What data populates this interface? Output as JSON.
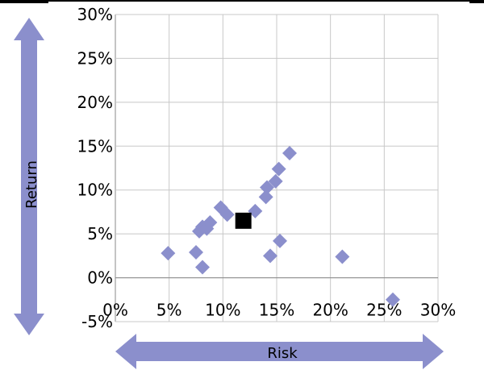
{
  "chart_data": {
    "type": "scatter",
    "xlabel": "Risk",
    "ylabel": "Return",
    "xlim": [
      0,
      0.3
    ],
    "ylim": [
      -0.05,
      0.3
    ],
    "x_ticks": [
      "0%",
      "5%",
      "10%",
      "15%",
      "20%",
      "25%",
      "30%"
    ],
    "y_ticks": [
      "30%",
      "25%",
      "20%",
      "15%",
      "10%",
      "5%",
      "0%",
      "-5%"
    ],
    "grid": true,
    "series": [
      {
        "marker": "diamond",
        "color": "#8b8fcc",
        "points": [
          {
            "x": 0.049,
            "y": 0.028
          },
          {
            "x": 0.075,
            "y": 0.029
          },
          {
            "x": 0.081,
            "y": 0.012
          },
          {
            "x": 0.078,
            "y": 0.053
          },
          {
            "x": 0.081,
            "y": 0.058
          },
          {
            "x": 0.085,
            "y": 0.056
          },
          {
            "x": 0.088,
            "y": 0.063
          },
          {
            "x": 0.098,
            "y": 0.08
          },
          {
            "x": 0.104,
            "y": 0.072
          },
          {
            "x": 0.13,
            "y": 0.076
          },
          {
            "x": 0.14,
            "y": 0.092
          },
          {
            "x": 0.141,
            "y": 0.103
          },
          {
            "x": 0.144,
            "y": 0.025
          },
          {
            "x": 0.149,
            "y": 0.11
          },
          {
            "x": 0.152,
            "y": 0.124
          },
          {
            "x": 0.153,
            "y": 0.042
          },
          {
            "x": 0.162,
            "y": 0.142
          },
          {
            "x": 0.211,
            "y": 0.024
          },
          {
            "x": 0.258,
            "y": -0.025
          }
        ]
      },
      {
        "marker": "square",
        "color": "#000000",
        "points": [
          {
            "x": 0.119,
            "y": 0.065
          }
        ]
      }
    ]
  },
  "colors": {
    "arrow": "#8b8fcc",
    "grid": "#c8c8c8",
    "axis": "#888888"
  }
}
